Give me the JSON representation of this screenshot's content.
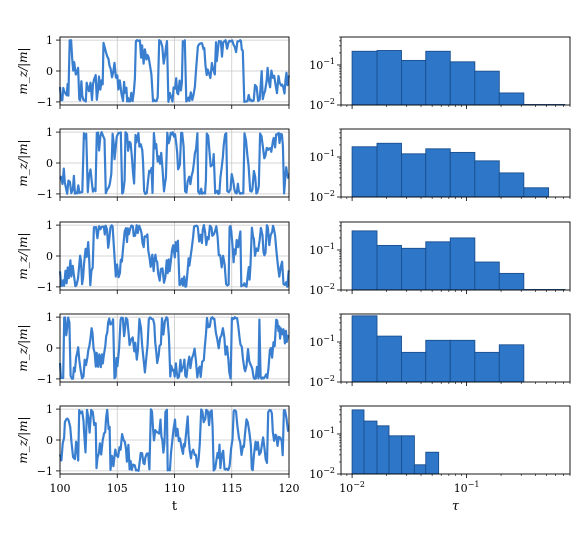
{
  "chart_data": [
    {
      "panel": "timeseries",
      "type": "line",
      "xlabel": "t",
      "ylabel": "m_z/|m|",
      "xlim": [
        100,
        120
      ],
      "ylim": [
        -1.1,
        1.1
      ],
      "xticks": [
        100,
        105,
        110,
        115,
        120
      ],
      "yticks": [
        -1,
        0,
        1
      ],
      "grid": true,
      "line_color": "#3a7fcf",
      "rows": [
        {
          "seed": 11
        },
        {
          "seed": 23
        },
        {
          "seed": 37
        },
        {
          "seed": 53
        },
        {
          "seed": 71
        }
      ]
    },
    {
      "panel": "histogram",
      "type": "bar",
      "xlabel": "τ",
      "xscale": "log",
      "yscale": "log",
      "xlim": [
        0.008,
        0.8
      ],
      "ylim": [
        0.01,
        0.5
      ],
      "bar_color": "#2e76c8",
      "bar_edge": "#1a4f8f",
      "xtick_labels": [
        "10^-2",
        "10^-1"
      ],
      "ytick_labels": [
        "10^-2",
        "10^-1"
      ],
      "rows": [
        {
          "bins": [
            [
              0.01,
              0.0165,
              0.22
            ],
            [
              0.0165,
              0.027,
              0.23
            ],
            [
              0.027,
              0.044,
              0.13
            ],
            [
              0.044,
              0.072,
              0.22
            ],
            [
              0.072,
              0.118,
              0.12
            ],
            [
              0.118,
              0.193,
              0.07
            ],
            [
              0.193,
              0.316,
              0.02
            ],
            [
              0.316,
              0.52,
              0.0103
            ],
            [
              0.52,
              0.72,
              0.0103
            ]
          ]
        },
        {
          "bins": [
            [
              0.01,
              0.0165,
              0.18
            ],
            [
              0.0165,
              0.027,
              0.22
            ],
            [
              0.027,
              0.044,
              0.12
            ],
            [
              0.044,
              0.072,
              0.16
            ],
            [
              0.072,
              0.118,
              0.13
            ],
            [
              0.118,
              0.193,
              0.08
            ],
            [
              0.193,
              0.316,
              0.04
            ],
            [
              0.316,
              0.52,
              0.017
            ]
          ]
        },
        {
          "bins": [
            [
              0.01,
              0.0165,
              0.3
            ],
            [
              0.0165,
              0.027,
              0.13
            ],
            [
              0.027,
              0.044,
              0.11
            ],
            [
              0.044,
              0.072,
              0.16
            ],
            [
              0.072,
              0.118,
              0.2
            ],
            [
              0.118,
              0.193,
              0.05
            ],
            [
              0.193,
              0.316,
              0.026
            ],
            [
              0.316,
              0.52,
              0.0103
            ],
            [
              0.52,
              0.72,
              0.0103
            ]
          ]
        },
        {
          "bins": [
            [
              0.01,
              0.0165,
              0.45
            ],
            [
              0.0165,
              0.027,
              0.14
            ],
            [
              0.027,
              0.044,
              0.055
            ],
            [
              0.044,
              0.072,
              0.11
            ],
            [
              0.072,
              0.118,
              0.11
            ],
            [
              0.118,
              0.193,
              0.055
            ],
            [
              0.193,
              0.316,
              0.085
            ]
          ]
        },
        {
          "bins": [
            [
              0.01,
              0.0127,
              0.4
            ],
            [
              0.0127,
              0.0165,
              0.21
            ],
            [
              0.0165,
              0.021,
              0.16
            ],
            [
              0.021,
              0.027,
              0.09
            ],
            [
              0.027,
              0.035,
              0.09
            ],
            [
              0.035,
              0.044,
              0.017
            ],
            [
              0.044,
              0.057,
              0.035
            ]
          ]
        }
      ]
    }
  ]
}
